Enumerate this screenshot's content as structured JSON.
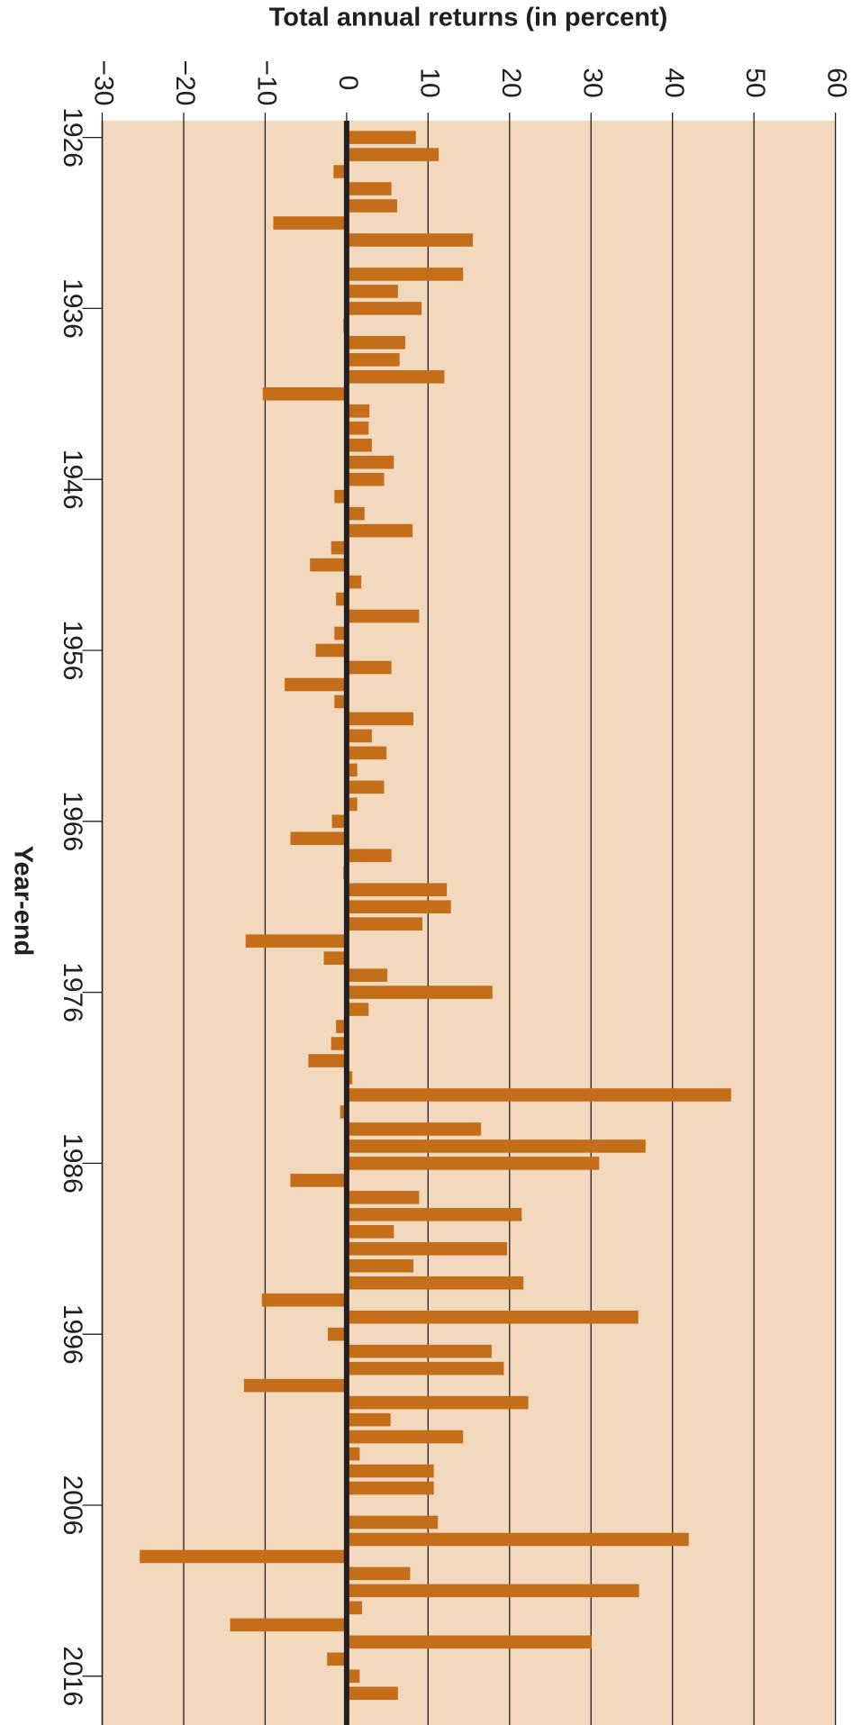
{
  "chart_data": {
    "type": "bar",
    "title": "Total annual returns (in percent)",
    "x_label": "Year-end",
    "categories": [
      "1926",
      null,
      null,
      null,
      null,
      null,
      null,
      null,
      null,
      null,
      "1936",
      null,
      null,
      null,
      null,
      null,
      null,
      null,
      null,
      null,
      "1946",
      null,
      null,
      null,
      null,
      null,
      null,
      null,
      null,
      null,
      "1956",
      null,
      null,
      null,
      null,
      null,
      null,
      null,
      null,
      null,
      "1966",
      null,
      null,
      null,
      null,
      null,
      null,
      null,
      null,
      null,
      "1976",
      null,
      null,
      null,
      null,
      null,
      null,
      null,
      null,
      null,
      "1986",
      null,
      null,
      null,
      null,
      null,
      null,
      null,
      null,
      null,
      "1996",
      null,
      null,
      null,
      null,
      null,
      null,
      null,
      null,
      null,
      "2006",
      null,
      null,
      null,
      null,
      null,
      null,
      null,
      null,
      null,
      "2016",
      null,
      null
    ],
    "values": [
      8.5,
      11.3,
      -1.6,
      5.5,
      6.2,
      -9.0,
      15.5,
      0,
      14.3,
      6.3,
      9.2,
      -0.4,
      7.2,
      6.5,
      12.0,
      -10.3,
      2.8,
      2.7,
      3.1,
      5.8,
      4.6,
      -1.5,
      2.2,
      8.1,
      -1.9,
      -4.5,
      1.8,
      -1.3,
      8.9,
      -1.5,
      -3.8,
      5.5,
      -7.6,
      -1.5,
      8.2,
      3.1,
      4.9,
      1.3,
      4.6,
      1.3,
      -1.8,
      -6.9,
      5.5,
      -0.4,
      12.3,
      12.8,
      9.3,
      -12.4,
      -2.8,
      5.0,
      17.9,
      2.7,
      -1.3,
      -1.9,
      -4.7,
      0.7,
      47.2,
      -0.8,
      16.5,
      36.7,
      31.0,
      -6.9,
      8.9,
      21.5,
      5.8,
      19.7,
      8.2,
      21.7,
      -10.4,
      35.8,
      -2.3,
      17.8,
      19.3,
      -12.6,
      22.3,
      5.4,
      14.3,
      1.6,
      10.7,
      10.7,
      0,
      11.2,
      42.0,
      -25.4,
      7.8,
      35.9,
      1.9,
      -14.3,
      30.1,
      -2.4,
      1.6,
      6.3,
      0.3
    ],
    "color": "#c56e1a",
    "background": "#f2d9be",
    "ylim": [
      -30,
      60
    ],
    "yticks": [
      {
        "value": -30,
        "label": "−30"
      },
      {
        "value": -20,
        "label": "−20"
      },
      {
        "value": -10,
        "label": "−10"
      },
      0,
      10,
      20,
      30,
      40,
      50,
      60
    ],
    "grid": true
  }
}
